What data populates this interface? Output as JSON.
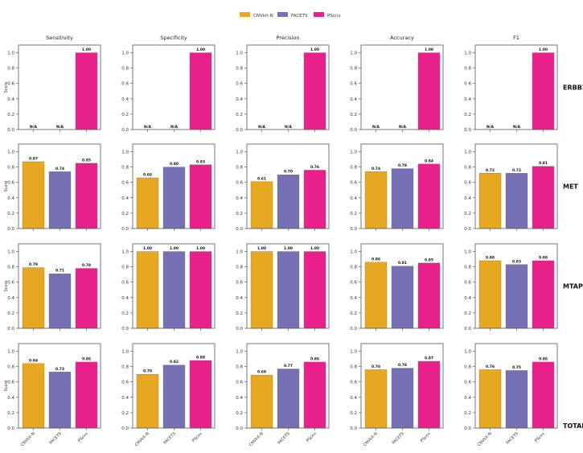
{
  "chart_data": {
    "type": "bar",
    "layout": "grid of small multiples (rows = genes, columns = metrics)",
    "legend_position": "top-center",
    "grid": false,
    "ylabel": "Score",
    "ylim": [
      0,
      1.1
    ],
    "yticks": [
      "0.0",
      "0.2",
      "0.4",
      "0.6",
      "0.8",
      "1.0"
    ],
    "categories": [
      "CNVkit-N",
      "FACETS",
      "PScnv"
    ],
    "legend": [
      "CNVkit-N",
      "FACETS",
      "PScnv"
    ],
    "colors": {
      "CNVkit-N": "#E6A820",
      "FACETS": "#7570B3",
      "PScnv": "#E7208A"
    },
    "columns": [
      "Sensitivity",
      "Specificity",
      "Precision",
      "Accuracy",
      "F1"
    ],
    "rows": [
      {
        "name": "ERBB2",
        "values": [
          [
            null,
            null,
            1.0
          ],
          [
            null,
            null,
            1.0
          ],
          [
            null,
            null,
            1.0
          ],
          [
            null,
            null,
            1.0
          ],
          [
            null,
            null,
            1.0
          ]
        ]
      },
      {
        "name": "MET",
        "values": [
          [
            0.87,
            0.74,
            0.85
          ],
          [
            0.66,
            0.8,
            0.83
          ],
          [
            0.61,
            0.7,
            0.76
          ],
          [
            0.74,
            0.78,
            0.84
          ],
          [
            0.72,
            0.72,
            0.81
          ]
        ]
      },
      {
        "name": "MTAP",
        "values": [
          [
            0.79,
            0.71,
            0.78
          ],
          [
            1.0,
            1.0,
            1.0
          ],
          [
            1.0,
            1.0,
            1.0
          ],
          [
            0.86,
            0.81,
            0.85
          ],
          [
            0.88,
            0.83,
            0.88
          ]
        ]
      },
      {
        "name": "TOTAL",
        "values": [
          [
            0.84,
            0.73,
            0.86
          ],
          [
            0.7,
            0.82,
            0.88
          ],
          [
            0.69,
            0.77,
            0.86
          ],
          [
            0.76,
            0.78,
            0.87
          ],
          [
            0.76,
            0.75,
            0.86
          ]
        ]
      }
    ],
    "missing_label": "N/A"
  }
}
